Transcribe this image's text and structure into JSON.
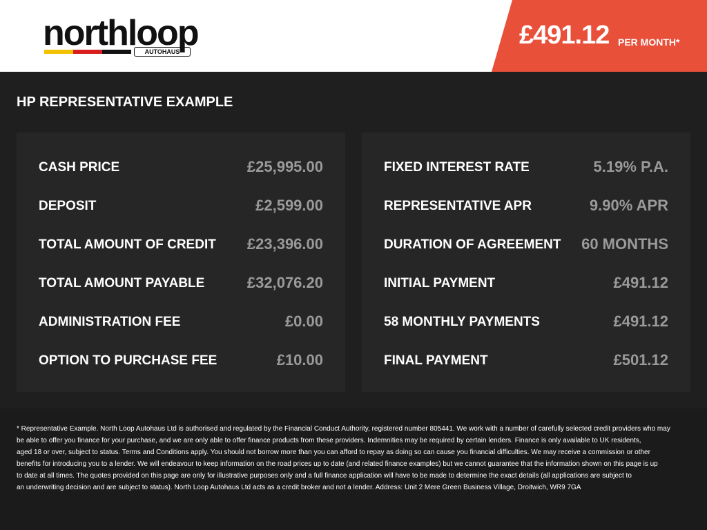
{
  "logo": {
    "name": "northloop",
    "tagline": "AUTOHAUS"
  },
  "price": {
    "amount": "£491.12",
    "suffix": "PER MONTH*"
  },
  "section_title": "HP REPRESENTATIVE EXAMPLE",
  "left_rows": [
    {
      "label": "CASH PRICE",
      "value": "£25,995.00"
    },
    {
      "label": "DEPOSIT",
      "value": "£2,599.00"
    },
    {
      "label": "TOTAL AMOUNT OF CREDIT",
      "value": "£23,396.00"
    },
    {
      "label": "TOTAL AMOUNT PAYABLE",
      "value": "£32,076.20"
    },
    {
      "label": "ADMINISTRATION FEE",
      "value": "£0.00"
    },
    {
      "label": "OPTION TO PURCHASE FEE",
      "value": "£10.00"
    }
  ],
  "right_rows": [
    {
      "label": "FIXED INTEREST RATE",
      "value": "5.19% P.A."
    },
    {
      "label": "REPRESENTATIVE APR",
      "value": "9.90% APR"
    },
    {
      "label": "DURATION OF AGREEMENT",
      "value": "60 MONTHS"
    },
    {
      "label": "INITIAL PAYMENT",
      "value": "£491.12"
    },
    {
      "label": "58 MONTHLY PAYMENTS",
      "value": "£491.12"
    },
    {
      "label": "FINAL PAYMENT",
      "value": "£501.12"
    }
  ],
  "disclaimer": [
    "* Representative Example. North Loop Autohaus Ltd is authorised and regulated by the Financial Conduct Authority, registered number 805441. We work with a number of carefully selected credit providers who may",
    "be able to offer you finance for your purchase, and we are only able to offer finance products from these providers. Indemnities may be required by certain lenders. Finance is only available to UK residents,",
    "aged 18 or over, subject to status. Terms and Conditions apply. You should not borrow more than you can afford to repay as doing so can cause you financial difficulties. We may receive a commission or other",
    "benefits for introducing you to a lender. We will endeavour to keep information on the road prices up to date (and related finance examples) but we cannot guarantee that the information shown on this page is up",
    "to date at all times. The quotes provided on this page are only for illustrative purposes only and a full finance application will have to be made to determine the exact details (all applications are subject to",
    "an underwriting decision and are subject to status). North Loop Autohaus Ltd acts as a credit broker and not a lender. Address: Unit 2 Mere Green Business Village, Droitwich, WR9 7GA"
  ]
}
